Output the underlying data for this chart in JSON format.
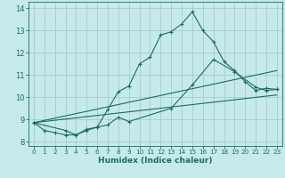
{
  "xlabel": "Humidex (Indice chaleur)",
  "background_color": "#c6eaea",
  "grid_color": "#a8cccc",
  "line_color": "#1a6b6b",
  "xlim": [
    -0.5,
    23.5
  ],
  "ylim": [
    7.8,
    14.3
  ],
  "xticks": [
    0,
    1,
    2,
    3,
    4,
    5,
    6,
    7,
    8,
    9,
    10,
    11,
    12,
    13,
    14,
    15,
    16,
    17,
    18,
    19,
    20,
    21,
    22,
    23
  ],
  "yticks": [
    8,
    9,
    10,
    11,
    12,
    13,
    14
  ],
  "line1_x": [
    0,
    1,
    2,
    3,
    4,
    5,
    6,
    7,
    8,
    9,
    10,
    11,
    12,
    13,
    14,
    15,
    16,
    17,
    18,
    19,
    20,
    21,
    22,
    23
  ],
  "line1_y": [
    8.85,
    8.5,
    8.4,
    8.3,
    8.3,
    8.5,
    8.65,
    9.45,
    10.25,
    10.5,
    11.5,
    11.8,
    12.8,
    12.95,
    13.3,
    13.85,
    13.0,
    12.5,
    11.6,
    11.2,
    10.7,
    10.3,
    10.4,
    10.35
  ],
  "line2_x": [
    0,
    3,
    4,
    5,
    6,
    7,
    8,
    9,
    13,
    15,
    17,
    19,
    21,
    22,
    23
  ],
  "line2_y": [
    8.85,
    8.5,
    8.3,
    8.55,
    8.65,
    8.75,
    9.1,
    8.9,
    9.5,
    10.55,
    11.7,
    11.15,
    10.45,
    10.3,
    10.35
  ],
  "line3_x": [
    0,
    23
  ],
  "line3_y": [
    8.85,
    11.2
  ],
  "line4_x": [
    0,
    23
  ],
  "line4_y": [
    8.85,
    10.1
  ]
}
